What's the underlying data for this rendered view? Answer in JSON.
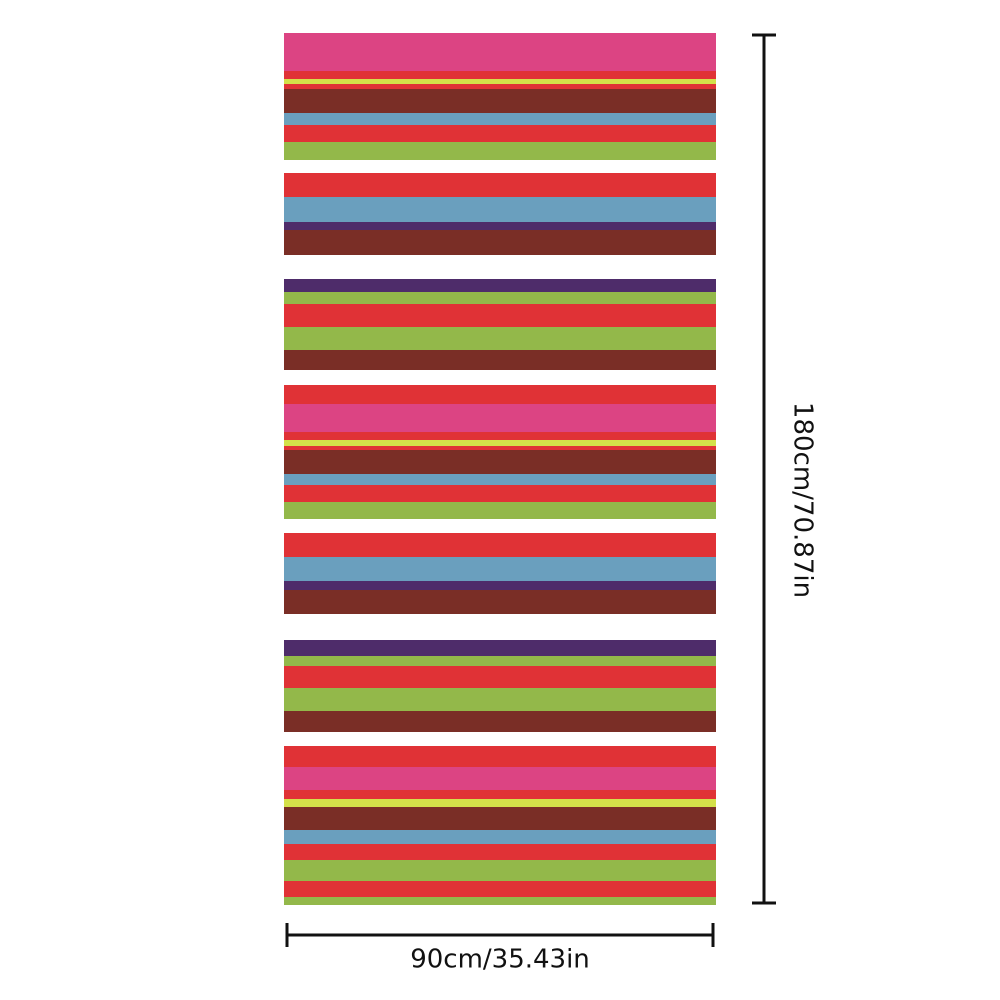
{
  "dimensions": {
    "height": "180cm/70.87in",
    "width": "90cm/35.43in"
  }
}
